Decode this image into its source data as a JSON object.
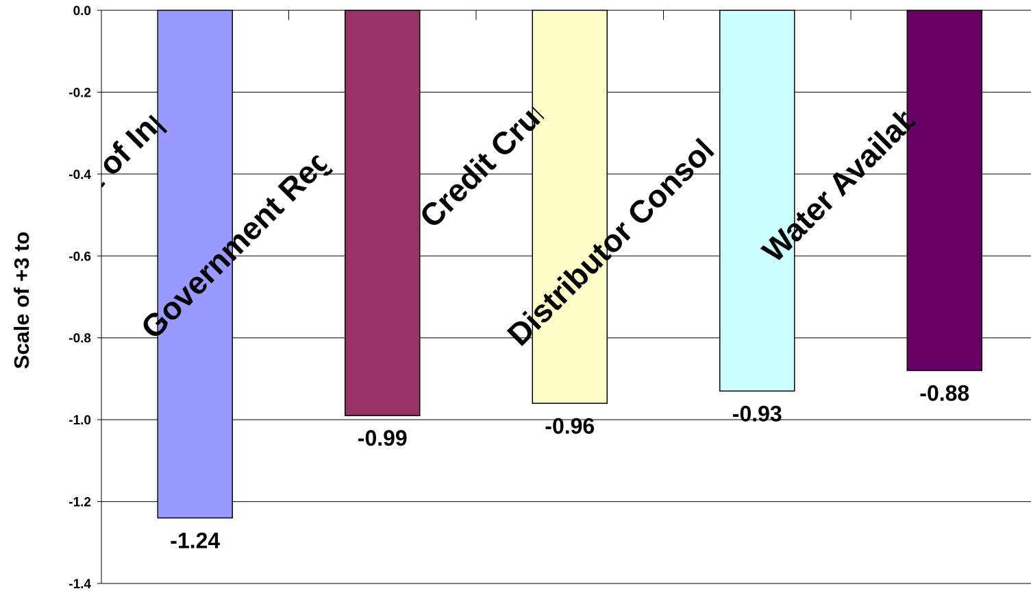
{
  "chart_data": {
    "type": "bar",
    "categories": [
      "Cost of Inputs",
      "Government Regulation",
      "Credit Crunch",
      "Distributor Consolidation",
      "Water Availability"
    ],
    "values": [
      -1.24,
      -0.99,
      -0.96,
      -0.93,
      -0.88
    ],
    "value_labels": [
      "-1.24",
      "-0.99",
      "-0.96",
      "-0.93",
      "-0.88"
    ],
    "colors": [
      "#9999ff",
      "#993366",
      "#ffffcc",
      "#ccffff",
      "#660066"
    ],
    "ylabel": "Scale of +3 to",
    "ylim": [
      -1.4,
      0.0
    ],
    "yticks": [
      "0.0",
      "-0.2",
      "-0.4",
      "-0.6",
      "-0.8",
      "-1.0",
      "-1.2",
      "-1.4"
    ],
    "grid": true,
    "legend": "none"
  }
}
